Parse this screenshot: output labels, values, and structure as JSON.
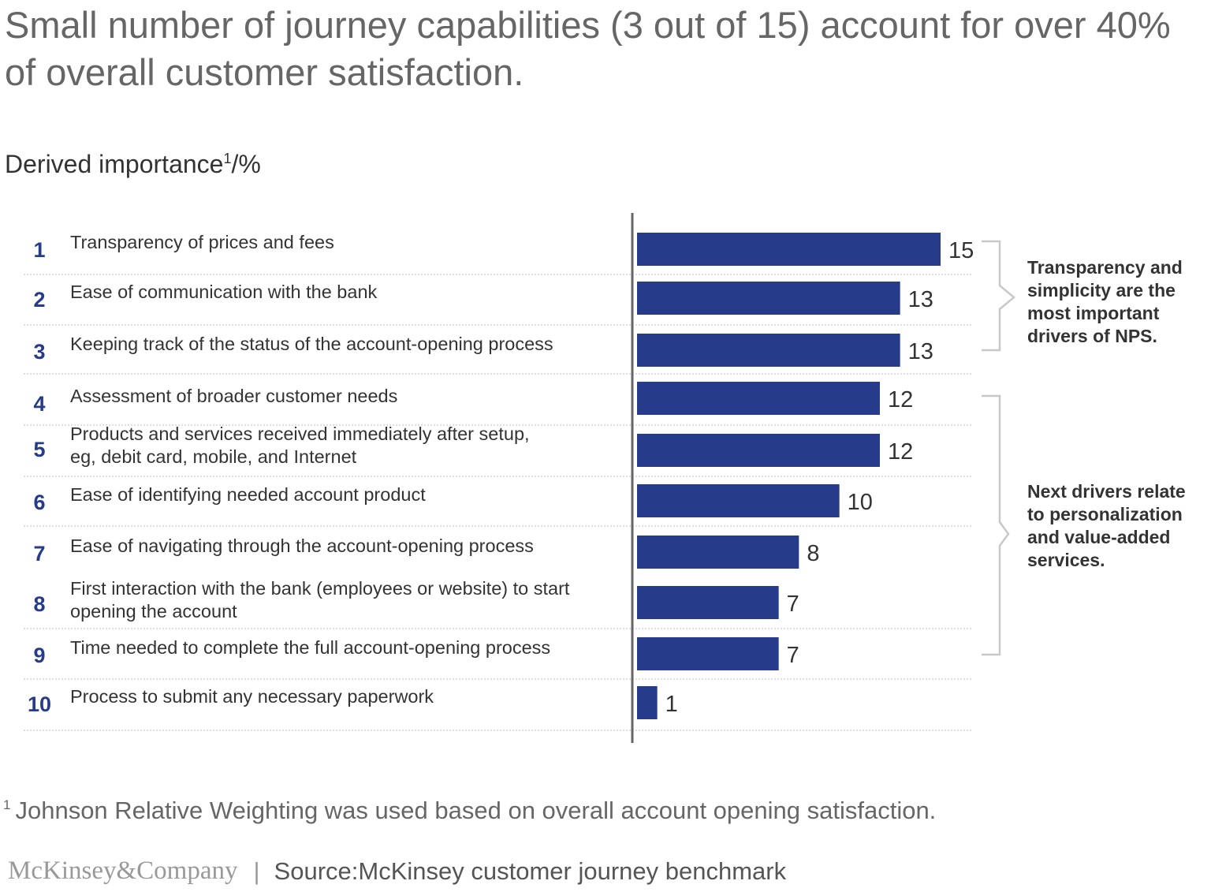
{
  "title": "Small number of journey capabilities (3 out of 15) account for over 40% of overall customer satisfaction.",
  "subtitle": {
    "text": "Derived importance",
    "sup": "1",
    "unit": "/%"
  },
  "chart_data": {
    "type": "bar",
    "orientation": "horizontal",
    "title": "Derived importance",
    "ylabel": "%",
    "xlim": [
      0,
      15
    ],
    "categories": [
      {
        "rank": "1",
        "lines": [
          "Transparency of prices and fees"
        ]
      },
      {
        "rank": "2",
        "lines": [
          "Ease of communication with the bank"
        ]
      },
      {
        "rank": "3",
        "lines": [
          "Keeping track of the status of the account-opening process"
        ]
      },
      {
        "rank": "4",
        "lines": [
          "Assessment of broader customer needs"
        ]
      },
      {
        "rank": "5",
        "lines": [
          "Products and services received immediately after setup,",
          "eg, debit card, mobile, and Internet"
        ]
      },
      {
        "rank": "6",
        "lines": [
          "Ease of identifying needed account product"
        ]
      },
      {
        "rank": "7",
        "lines": [
          "Ease of navigating through the account-opening process"
        ]
      },
      {
        "rank": "8",
        "lines": [
          "First interaction with the bank (employees or website) to start",
          "opening the account"
        ]
      },
      {
        "rank": "9",
        "lines": [
          "Time needed to complete the full account-opening process"
        ]
      },
      {
        "rank": "10",
        "lines": [
          "Process to submit any necessary paperwork"
        ]
      }
    ],
    "values": [
      15,
      13,
      13,
      12,
      12,
      10,
      8,
      7,
      7,
      1
    ],
    "annotations": [
      {
        "from": 0,
        "to": 2,
        "lines": [
          "Transparency and",
          "simplicity are the",
          "most important",
          "drivers of NPS."
        ]
      },
      {
        "from": 3,
        "to": 8,
        "lines": [
          "Next drivers relate",
          "to personalization",
          "and value-added",
          "services."
        ]
      }
    ]
  },
  "colors": {
    "bar": "#263c8a",
    "rank": "#263c8a",
    "divider": "#bdbdbd",
    "axis": "#666666",
    "bracket": "#c8c8c8",
    "text": "#333333"
  },
  "footnote": {
    "sup": "1",
    "text": "Johnson Relative Weighting was used based on overall account opening satisfaction."
  },
  "footer": {
    "logo": "McKinsey&Company",
    "separator": "|",
    "source": "Source:McKinsey customer journey benchmark"
  }
}
